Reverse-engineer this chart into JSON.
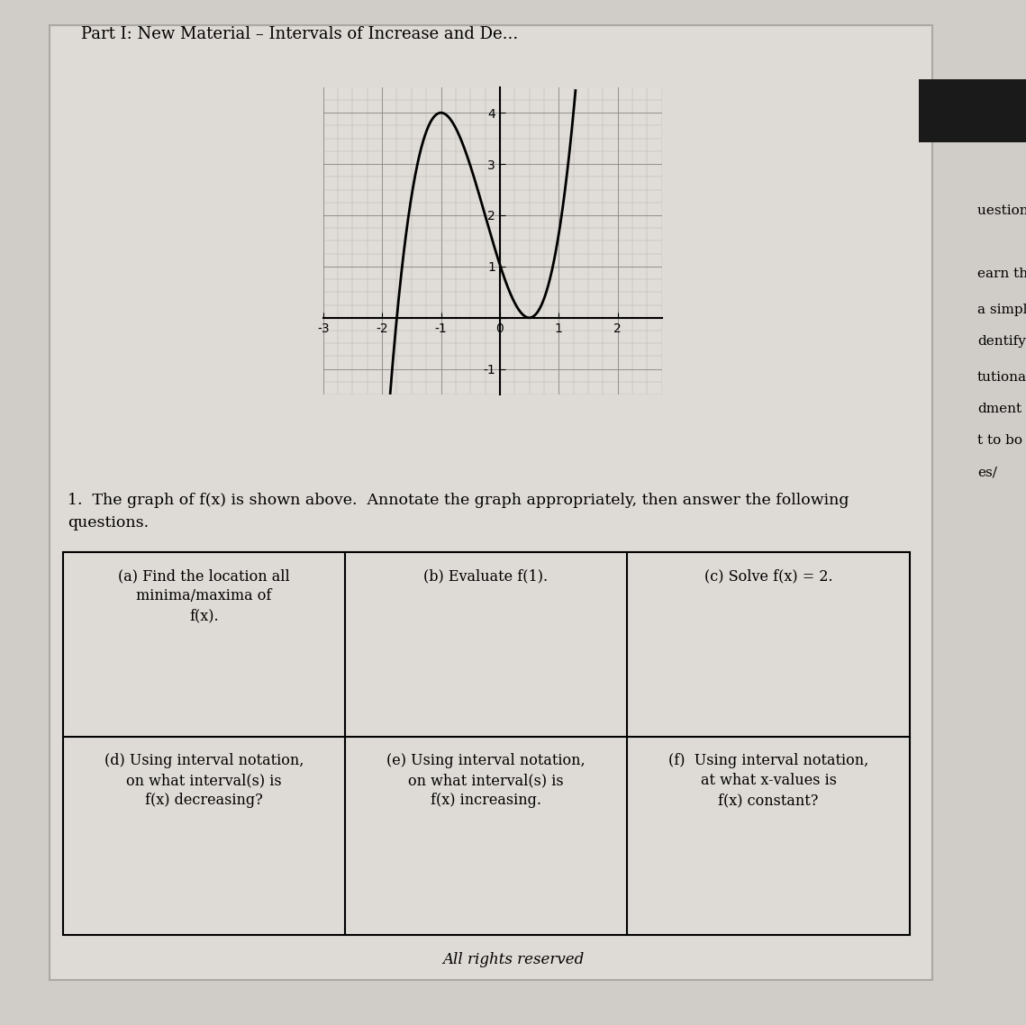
{
  "title": "Part I: New Material – Intervals of Increase and De...",
  "background_color": "#d0ccc7",
  "paper_color": "#dedad5",
  "graph": {
    "xlim": [
      -3,
      2.5
    ],
    "ylim": [
      -1.5,
      4.5
    ],
    "xticks": [
      -3,
      -2,
      -1,
      0,
      1,
      2
    ],
    "yticks": [
      -1,
      0,
      1,
      2,
      3,
      4
    ],
    "facecolor": "#e0dcd7"
  },
  "question_text_line1": "1.  The graph of f(x) is shown above.  Annotate the graph appropriately, then answer the following",
  "question_text_line2": "questions.",
  "table": {
    "cells_row1": [
      "(a) Find the location all\nminima/maxima of\nf(x).",
      "(b) Evaluate f(1).",
      "(c) Solve f(x) = 2."
    ],
    "cells_row2": [
      "(d) Using interval notation,\non what interval(s) is\nf(x) decreasing?",
      "(e) Using interval notation,\non what interval(s) is\nf(x) increasing.",
      "(f)  Using interval notation,\nat what x-values is\nf(x) constant?"
    ]
  },
  "footer": "All rights reserved",
  "right_sidebar_texts": [
    "uestions a",
    "earn the",
    "a simply",
    "dentify",
    "tutional",
    "dment",
    "t to bo",
    "es/"
  ],
  "right_sidebar_y": [
    900,
    830,
    790,
    755,
    715,
    680,
    645,
    610
  ],
  "header_text": "Part I: New Material – Intervals of Increase and De...",
  "curve_a": 2.3703703703703702,
  "curve_b": 1.7777777777777777,
  "curve_c": -3.5555555555555554,
  "curve_d": 1.0370370370370372
}
